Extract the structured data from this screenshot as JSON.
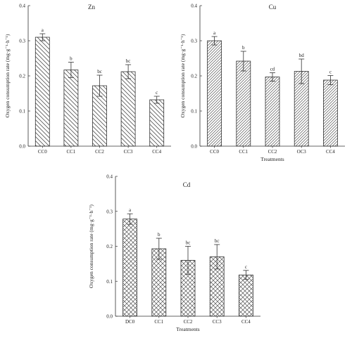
{
  "colors": {
    "ink": "#333333",
    "hatch": "#555555",
    "background": "#ffffff"
  },
  "chart_data": [
    {
      "type": "bar",
      "title": "Zn",
      "xlabel": "",
      "ylabel": "Oxygen consumption rate (mg·g⁻¹·h⁻¹)",
      "ylim": [
        0,
        0.4
      ],
      "yticks": [
        "0.0",
        "0.1",
        "0.2",
        "0.3",
        "0.4"
      ],
      "categories": [
        "CC0",
        "CC1",
        "CC2",
        "CC3",
        "CC4"
      ],
      "values": [
        0.31,
        0.217,
        0.172,
        0.212,
        0.132
      ],
      "errors": [
        0.01,
        0.022,
        0.03,
        0.02,
        0.01
      ],
      "significance": [
        "a",
        "b",
        "bc",
        "bc",
        "c"
      ],
      "pattern": "backslash",
      "grid": false
    },
    {
      "type": "bar",
      "title": "Cu",
      "xlabel": "Treatments",
      "ylabel": "Oxygen consumption rate (mg·g⁻¹·h⁻¹)",
      "ylim": [
        0,
        0.4
      ],
      "yticks": [
        "0.0",
        "0.1",
        "0.2",
        "0.3",
        "0.4"
      ],
      "categories": [
        "CC0",
        "CC1",
        "CC2",
        "OC3",
        "CC4"
      ],
      "values": [
        0.3,
        0.242,
        0.197,
        0.213,
        0.188
      ],
      "errors": [
        0.012,
        0.028,
        0.012,
        0.035,
        0.013
      ],
      "significance": [
        "a",
        "b",
        "cd",
        "bd",
        "c"
      ],
      "pattern": "slash",
      "grid": false
    },
    {
      "type": "bar",
      "title": "Cd",
      "xlabel": "Treatments",
      "ylabel": "Oxygen consumption rate (mg·g⁻¹·h⁻¹)",
      "ylim": [
        0,
        0.4
      ],
      "yticks": [
        "0.0",
        "0.1",
        "0.2",
        "0.3",
        "0.4"
      ],
      "categories": [
        "DC0",
        "CC1",
        "CC2",
        "CC3",
        "CC4"
      ],
      "values": [
        0.278,
        0.193,
        0.16,
        0.17,
        0.118
      ],
      "errors": [
        0.015,
        0.03,
        0.04,
        0.035,
        0.013
      ],
      "significance": [
        "a",
        "b",
        "bc",
        "bc",
        "c"
      ],
      "pattern": "crosshatch",
      "grid": false
    }
  ]
}
